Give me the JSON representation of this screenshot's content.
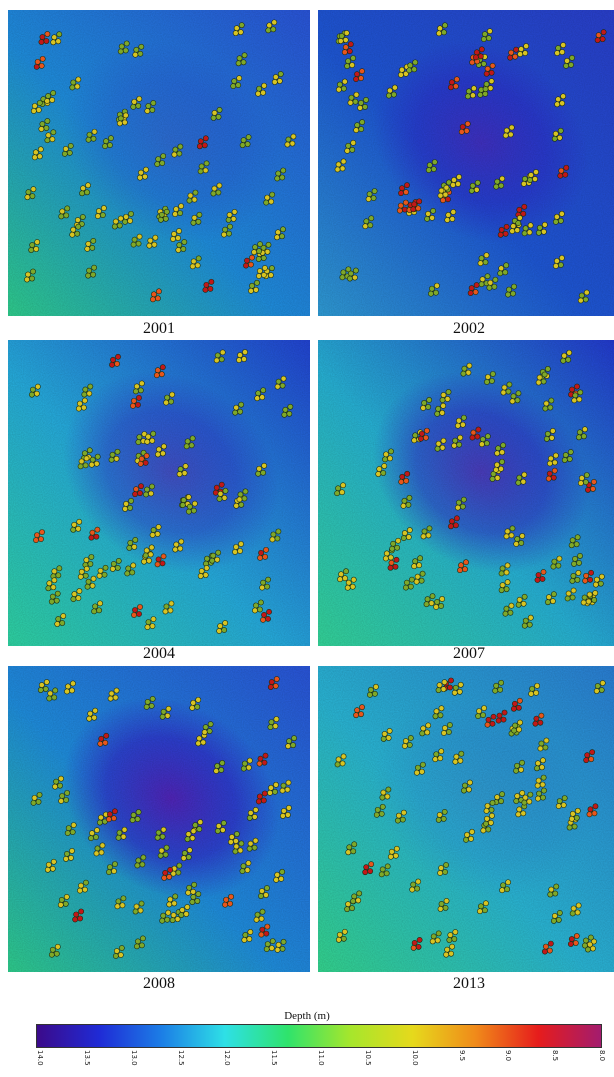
{
  "panels": [
    {
      "year": "2001",
      "darkness": 0.2,
      "warmth": 0.35,
      "bg": "green-sw"
    },
    {
      "year": "2002",
      "darkness": 0.55,
      "warmth": 0.7,
      "bg": "blue"
    },
    {
      "year": "2004",
      "darkness": 0.55,
      "warmth": 0.65,
      "bg": "cyan-sw"
    },
    {
      "year": "2007",
      "darkness": 0.7,
      "warmth": 0.25,
      "bg": "cyan-se"
    },
    {
      "year": "2008",
      "darkness": 0.85,
      "warmth": 0.25,
      "bg": "green-sw"
    },
    {
      "year": "2013",
      "darkness": 0.1,
      "warmth": 0.4,
      "bg": "cyan"
    }
  ],
  "colorbar": {
    "title": "Depth (m)",
    "ticks": [
      "14.0",
      "13.5",
      "13.0",
      "12.5",
      "12.0",
      "11.5",
      "11.0",
      "10.5",
      "10.0",
      "9.5",
      "9.0",
      "8.5",
      "8.0"
    ],
    "stops": [
      "#3b0a8a",
      "#1f2bd6",
      "#1c7fe6",
      "#2ee0e6",
      "#2fe36c",
      "#a6e62c",
      "#e6d91c",
      "#f08a1a",
      "#e61c1c",
      "#a31c6e"
    ]
  }
}
